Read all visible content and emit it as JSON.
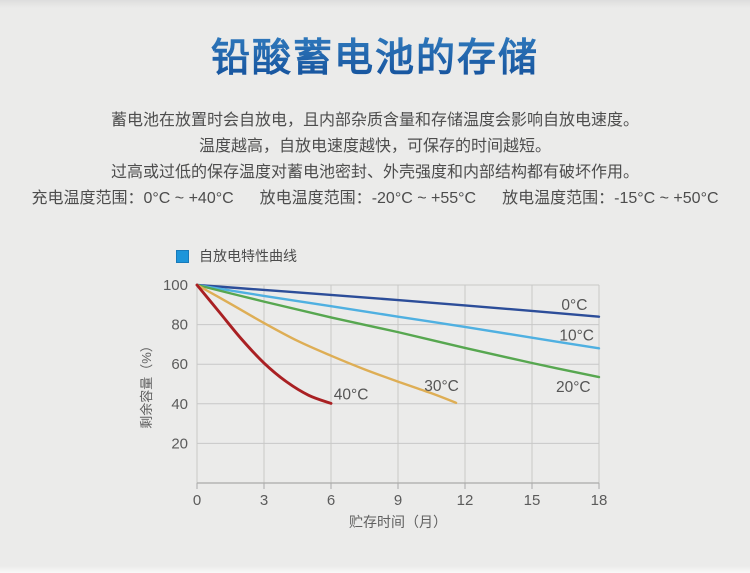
{
  "page": {
    "title": "铅酸蓄电池的存储"
  },
  "intro": {
    "line1": "蓄电池在放置时会自放电，且内部杂质含量和存储温度会影响自放电速度。",
    "line2": "温度越高，自放电速度越快，可保存的时间越短。",
    "line3": "过高或过低的保存温度对蓄电池密封、外壳强度和内部结构都有破坏作用。"
  },
  "temperature_ranges": [
    {
      "label": "充电温度范围：",
      "value": "0°C ~ +40°C"
    },
    {
      "label": "放电温度范围：",
      "value": "-20°C ~ +55°C"
    },
    {
      "label": "放电温度范围：",
      "value": "-15°C ~ +50°C"
    }
  ],
  "legend": {
    "label": "自放电特性曲线",
    "swatch_color": "#1d95da"
  },
  "colors": {
    "background": "#ebebea",
    "grid": "#c8c8c7",
    "axis": "#aaaaa9",
    "tick_text": "#5b5b5b",
    "curve_label_text": "#555555"
  },
  "chart_data": {
    "type": "line",
    "title": "自放电特性曲线",
    "xlabel": "贮存时间（月）",
    "ylabel": "剩余容量（%）",
    "xlim": [
      0,
      18
    ],
    "ylim": [
      0,
      100
    ],
    "xticks": [
      0,
      3,
      6,
      9,
      12,
      15,
      18
    ],
    "yticks": [
      20,
      40,
      60,
      80,
      100
    ],
    "grid": true,
    "legend_position": "top-left",
    "series": [
      {
        "name": "0°C",
        "color": "#2c4d99",
        "stroke_width": 2.4,
        "points": [
          [
            0,
            100
          ],
          [
            3,
            97.5
          ],
          [
            6,
            95
          ],
          [
            9,
            92.4
          ],
          [
            12,
            89.7
          ],
          [
            15,
            86.9
          ],
          [
            18,
            84
          ]
        ],
        "label_at": [
          16.9,
          90
        ]
      },
      {
        "name": "10°C",
        "color": "#4fb0e1",
        "stroke_width": 2.4,
        "points": [
          [
            0,
            100
          ],
          [
            3,
            94.5
          ],
          [
            6,
            89.3
          ],
          [
            9,
            84
          ],
          [
            12,
            78.8
          ],
          [
            15,
            73.4
          ],
          [
            18,
            68
          ]
        ],
        "label_at": [
          17.0,
          74.5
        ]
      },
      {
        "name": "20°C",
        "color": "#57a750",
        "stroke_width": 2.4,
        "points": [
          [
            0,
            100
          ],
          [
            3,
            91.6
          ],
          [
            6,
            83.6
          ],
          [
            9,
            76.2
          ],
          [
            12,
            68.2
          ],
          [
            15,
            60.6
          ],
          [
            18,
            53.5
          ]
        ],
        "label_at": [
          16.85,
          48.5
        ]
      },
      {
        "name": "30°C",
        "color": "#deae55",
        "stroke_width": 2.4,
        "points": [
          [
            0,
            100
          ],
          [
            1.5,
            90.5
          ],
          [
            3,
            80.8
          ],
          [
            4.5,
            71.8
          ],
          [
            6,
            64.3
          ],
          [
            7.5,
            57.4
          ],
          [
            9,
            51.2
          ],
          [
            10.5,
            45.3
          ],
          [
            11.6,
            40.5
          ]
        ],
        "label_at": [
          10.95,
          49
        ]
      },
      {
        "name": "40°C",
        "color": "#a92023",
        "stroke_width": 2.9,
        "points": [
          [
            0,
            100
          ],
          [
            1,
            86.3
          ],
          [
            2,
            72.6
          ],
          [
            3,
            60.6
          ],
          [
            4,
            51.2
          ],
          [
            5,
            44.3
          ],
          [
            6,
            40.2
          ]
        ],
        "label_at": [
          6.9,
          44.8
        ]
      }
    ]
  }
}
